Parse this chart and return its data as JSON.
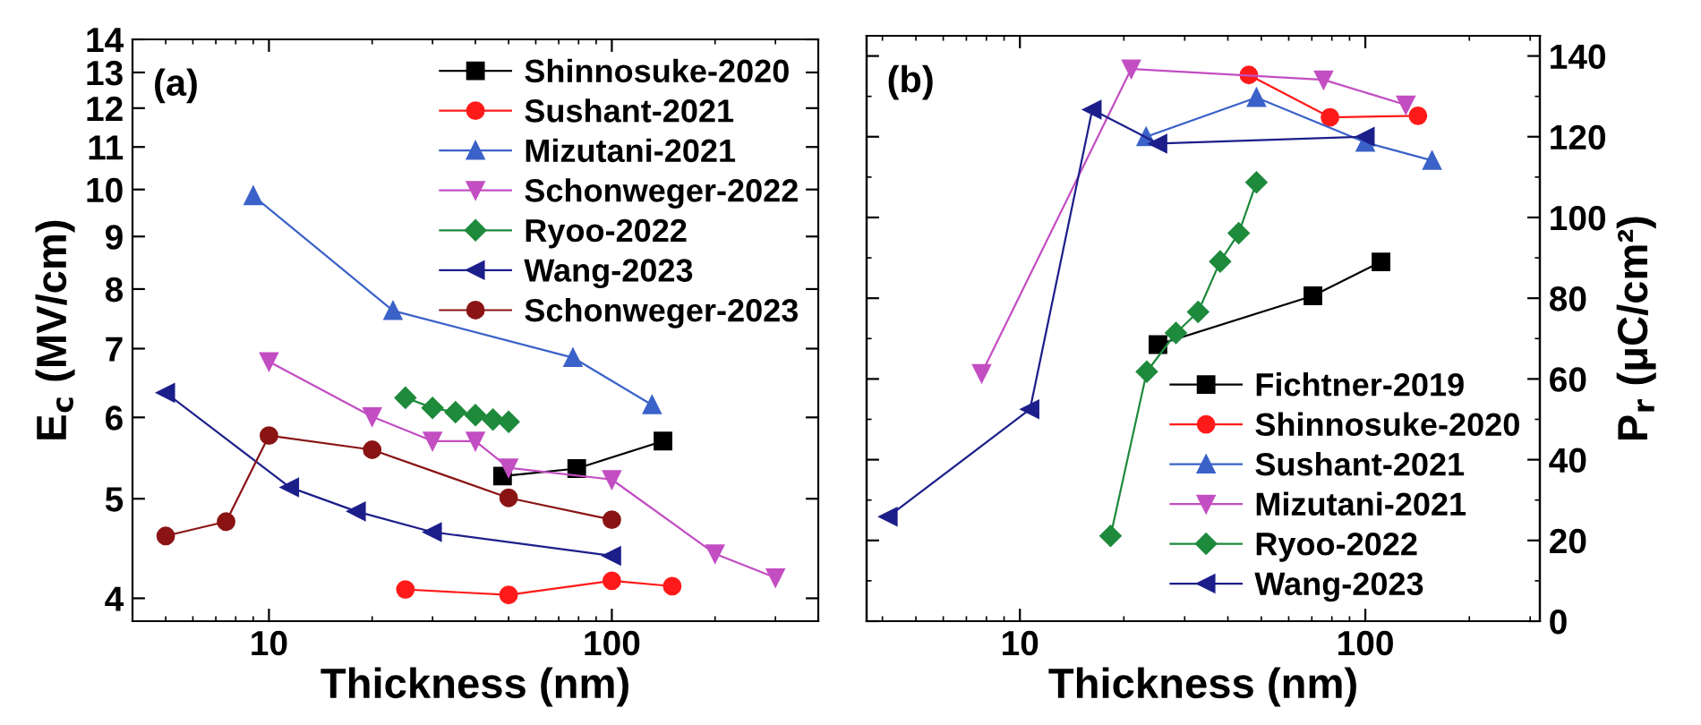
{
  "chart_data": [
    {
      "type": "line",
      "annotations": [
        "(a)"
      ],
      "xlabel": "Thickness (nm)",
      "ylabel": "E$_{c}$ (MV/cm)",
      "log": "xy",
      "xlim": [
        4,
        400
      ],
      "xticks": [
        10,
        100
      ],
      "ylim": [
        3.8,
        14
      ],
      "yticks": [
        4,
        5,
        6,
        7,
        8,
        9,
        10,
        11,
        12,
        13,
        14
      ],
      "grid": false,
      "legend": "top right",
      "series": [
        {
          "name": "Shinnosuke-2020",
          "color": "#000000",
          "marker": "square",
          "x": [
            48,
            79,
            141
          ],
          "values": [
            5.26,
            5.35,
            5.69
          ]
        },
        {
          "name": "Sushant-2021",
          "color": "#ff1a1a",
          "marker": "circle",
          "x": [
            25,
            50,
            100,
            150
          ],
          "values": [
            4.08,
            4.03,
            4.16,
            4.11
          ]
        },
        {
          "name": "Mizutani-2021",
          "color": "#3a62c8",
          "marker": "triangle",
          "x": [
            9,
            23,
            77,
            131
          ],
          "values": [
            9.86,
            7.62,
            6.86,
            6.17
          ]
        },
        {
          "name": "Schonweger-2022",
          "color": "#c24ec2",
          "marker": "triangle_down",
          "x": [
            10,
            20,
            30,
            40,
            50,
            100,
            200,
            300
          ],
          "values": [
            6.8,
            6.01,
            5.69,
            5.69,
            5.36,
            5.22,
            4.42,
            4.19
          ]
        },
        {
          "name": "Ryoo-2022",
          "color": "#1e8a3c",
          "marker": "diamond",
          "x": [
            25,
            30,
            35,
            40,
            45,
            50
          ],
          "values": [
            6.27,
            6.13,
            6.07,
            6.03,
            5.97,
            5.94
          ]
        },
        {
          "name": "Wang-2023",
          "color": "#1c1f8a",
          "marker": "triangle_left",
          "x": [
            5,
            11.5,
            18,
            30,
            100
          ],
          "values": [
            6.34,
            5.13,
            4.86,
            4.64,
            4.4
          ]
        },
        {
          "name": "Schonweger-2023",
          "color": "#8a1414",
          "marker": "circle",
          "x": [
            5,
            7.5,
            10,
            20,
            50,
            100
          ],
          "values": [
            4.6,
            4.75,
            5.76,
            5.58,
            5.01,
            4.77
          ]
        }
      ]
    },
    {
      "type": "line",
      "annotations": [
        "(b)"
      ],
      "xlabel": "Thickness (nm)",
      "y2label": "P$_{r}$ (μC/cm²)",
      "log": "x",
      "xlim": [
        3.6,
        320
      ],
      "xticks": [
        10,
        100
      ],
      "y2lim": [
        0,
        145
      ],
      "y2ticks": [
        0,
        20,
        40,
        60,
        80,
        100,
        120,
        140
      ],
      "grid": false,
      "legend": "bottom right",
      "series": [
        {
          "name": "Fichtner-2019",
          "color": "#000000",
          "marker": "square",
          "axis": "y2",
          "x": [
            25.1,
            70.5,
            111
          ],
          "values": [
            68.5,
            80.6,
            89.0
          ]
        },
        {
          "name": "Shinnosuke-2020",
          "color": "#ff1a1a",
          "marker": "circle",
          "axis": "y2",
          "x": [
            46,
            79,
            142
          ],
          "values": [
            135.3,
            124.8,
            125.2
          ]
        },
        {
          "name": "Sushant-2021",
          "color": "#3a62c8",
          "marker": "triangle",
          "axis": "y2",
          "x": [
            23.2,
            48.4,
            100,
            156
          ],
          "values": [
            120.0,
            129.7,
            118.6,
            114.1
          ]
        },
        {
          "name": "Mizutani-2021",
          "color": "#c24ec2",
          "marker": "triangle_down",
          "axis": "y2",
          "x": [
            7.75,
            21,
            75.7,
            131
          ],
          "values": [
            61.4,
            136.8,
            134.1,
            127.9
          ]
        },
        {
          "name": "Ryoo-2022",
          "color": "#1e8a3c",
          "marker": "diamond",
          "axis": "y2",
          "x": [
            18.3,
            23.3,
            28.3,
            32.8,
            38,
            43,
            48.4
          ],
          "values": [
            21.1,
            61.8,
            71.4,
            76.6,
            89.1,
            96.1,
            108.7
          ]
        },
        {
          "name": "Wang-2023",
          "color": "#1c1f8a",
          "marker": "triangle_left",
          "axis": "y2",
          "x": [
            4.16,
            10.7,
            16.2,
            25.1,
            100
          ],
          "values": [
            25.9,
            52.5,
            126.7,
            118.3,
            120.0
          ]
        }
      ]
    }
  ]
}
